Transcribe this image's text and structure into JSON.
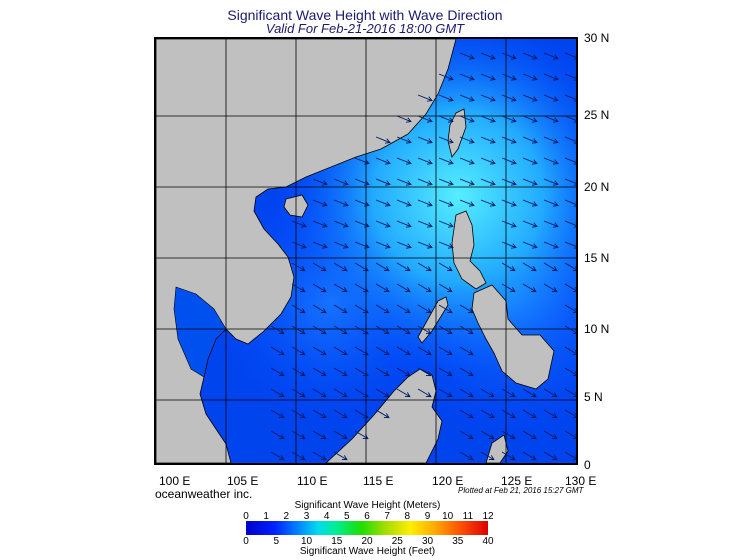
{
  "title": "Significant Wave Height with Wave Direction",
  "subtitle": "Valid For Feb-21-2016 18:00 GMT",
  "lat_labels": [
    "30 N",
    "25 N",
    "20 N",
    "15 N",
    "10 N",
    "5 N",
    "0"
  ],
  "lon_labels": [
    "100 E",
    "105 E",
    "110 E",
    "115 E",
    "120 E",
    "125 E",
    "130 E"
  ],
  "credit": "oceanweather inc.",
  "plotted": "Plotted at Feb 21, 2016 15:27 GMT",
  "scale": {
    "meters_title": "Significant Wave Height (Meters)",
    "feet_title": "Significant Wave Height (Feet)",
    "meters": [
      "0",
      "1",
      "2",
      "3",
      "4",
      "5",
      "6",
      "7",
      "8",
      "9",
      "10",
      "11",
      "12"
    ],
    "feet": [
      "0",
      "5",
      "10",
      "15",
      "20",
      "25",
      "30",
      "35",
      "40"
    ]
  },
  "colors": {
    "land": "#c0c0c0",
    "sea_deep": "#0022ee",
    "sea_mid": "#0066ff",
    "sea_high": "#33ddff"
  }
}
